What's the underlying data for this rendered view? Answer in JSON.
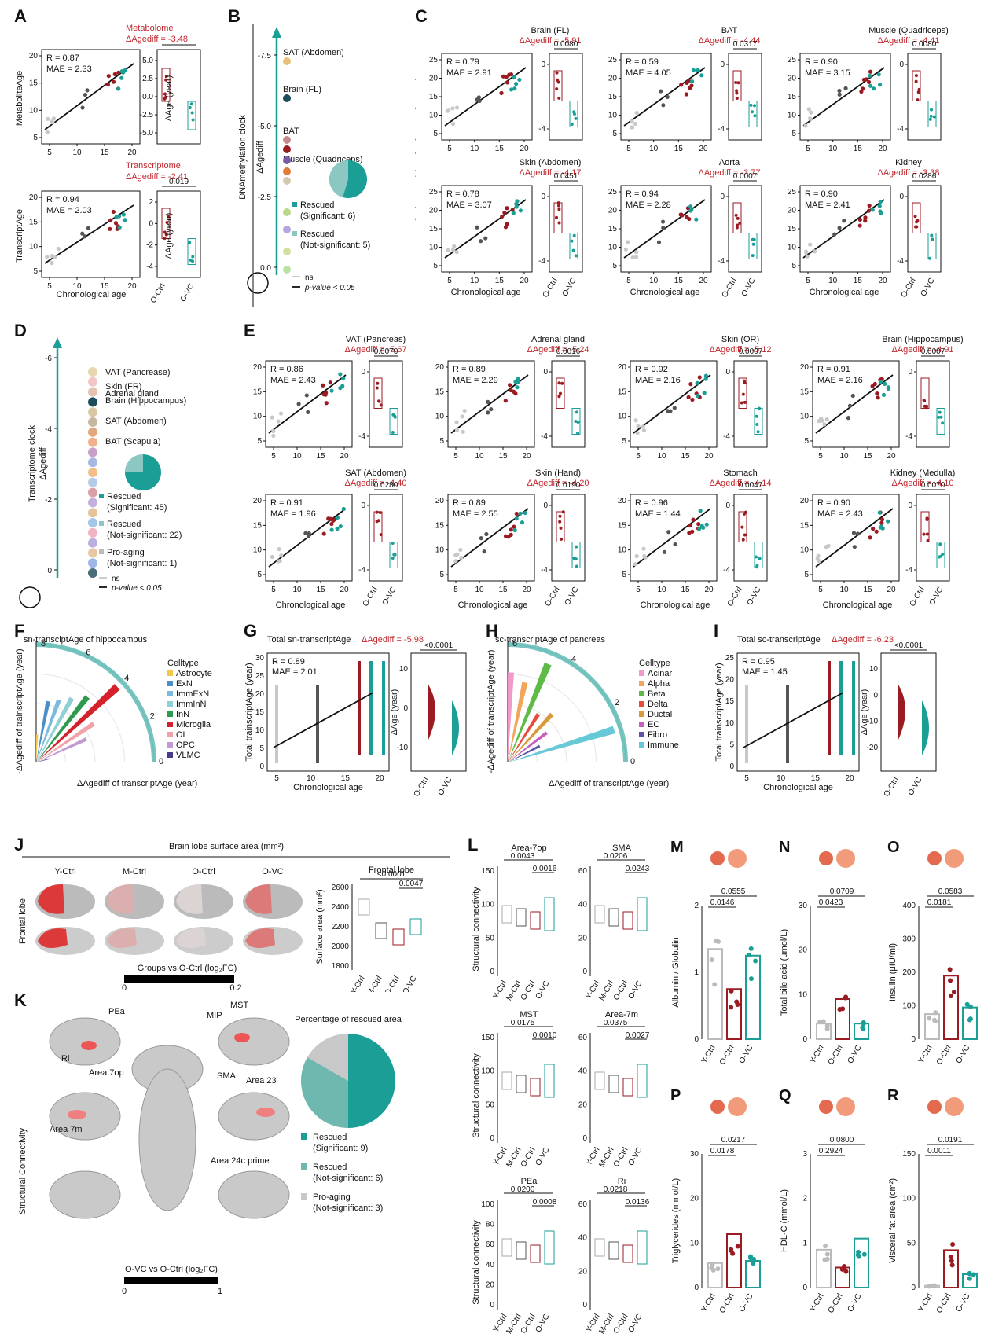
{
  "colors": {
    "red": "#9b1b22",
    "teal": "#1a9e96",
    "grey": "#c8c8c8",
    "dark": "#555555",
    "line": "#111111"
  },
  "letters": [
    "A",
    "B",
    "C",
    "D",
    "E",
    "F",
    "G",
    "H",
    "I",
    "J",
    "K",
    "L",
    "M",
    "N",
    "O",
    "P",
    "Q",
    "R"
  ],
  "panelA": {
    "top": {
      "title": "Metabolome",
      "delta": "ΔAgediff = -3.48",
      "ylabel": "MetaboliteAge",
      "R": "R = 0.87",
      "MAE": "MAE = 2.33",
      "pval": "0.0080",
      "box_ylabel": "ΔAge (year)",
      "yticks": [
        "20",
        "15",
        "10",
        "5"
      ],
      "xticks": [
        "5",
        "10",
        "15",
        "20"
      ],
      "box_yticks": [
        "5.0",
        "2.5",
        "0.0",
        "-2.5",
        "-5.0"
      ]
    },
    "bottom": {
      "title": "Transcriptome",
      "delta": "ΔAgediff = -2.41",
      "ylabel": "TranscriptAge",
      "R": "R = 0.94",
      "MAE": "MAE = 2.03",
      "pval": "0.019",
      "box_ylabel": "ΔAge (year)",
      "yticks": [
        "20",
        "15",
        "10",
        "5"
      ],
      "xticks": [
        "5",
        "10",
        "15",
        "20"
      ],
      "box_yticks": [
        "2",
        "0",
        "-2",
        "-4"
      ]
    },
    "xlabel": "Chronological age",
    "groups": [
      "O-Ctrl",
      "O-VC"
    ]
  },
  "panelB": {
    "ylabel": "DNAmethylation clock",
    "axis": "ΔAgediff",
    "ticks": [
      "-7.5",
      "-5.0",
      "-2.5",
      "0.0"
    ],
    "labels": [
      "SAT (Abdomen)",
      "Brain (FL)",
      "BAT",
      "Muscle (Quadriceps)"
    ],
    "legend": [
      "Rescued",
      "(Significant: 6)",
      "Rescued",
      "(Not-significant: 5)"
    ],
    "line_legend": [
      "ns",
      "p-value < 0.05"
    ],
    "pie": {
      "significant": 6,
      "not_significant": 5
    }
  },
  "panelC": {
    "ylabel": "DNAmAge (left side) | ΔAge (year) (right side)",
    "xlabel": "Chronological age",
    "groups": [
      "O-Ctrl",
      "O-VC"
    ],
    "charts": [
      {
        "title": "Brain (FL)",
        "delta": "ΔAgediff = -5.91",
        "R": "R = 0.79",
        "MAE": "MAE = 2.91",
        "p": "0.0080"
      },
      {
        "title": "BAT",
        "delta": "ΔAgediff = -4.44",
        "R": "R = 0.59",
        "MAE": "MAE = 4.05",
        "p": "0.0317"
      },
      {
        "title": "Muscle (Quadriceps)",
        "delta": "ΔAgediff = -4.41",
        "R": "R = 0.90",
        "MAE": "MAE = 3.15",
        "p": "0.0080"
      },
      {
        "title": "Skin (Abdomen)",
        "delta": "ΔAgediff = -4.17",
        "R": "R = 0.78",
        "MAE": "MAE = 3.07",
        "p": "0.0451"
      },
      {
        "title": "Aorta",
        "delta": "ΔAgediff = -3.77",
        "R": "R = 0.94",
        "MAE": "MAE = 2.28",
        "p": "0.0007"
      },
      {
        "title": "Kidney",
        "delta": "ΔAgediff = -3.38",
        "R": "R = 0.90",
        "MAE": "MAE = 2.41",
        "p": "0.0286"
      }
    ]
  },
  "panelD": {
    "ylabel": "Transcriptome clock",
    "axis": "ΔAgediff",
    "ticks": [
      "-6",
      "-4",
      "-2",
      "0"
    ],
    "labels": [
      "VAT (Pancrease)",
      "Skin (FR)",
      "Adrenal gland",
      "Brain (Hippocampus)",
      "SAT (Abdomen)",
      "BAT (Scapula)"
    ],
    "legend": [
      "Rescued",
      "(Significant: 45)",
      "Rescued",
      "(Not-significant: 22)",
      "Pro-aging",
      "(Not-significant: 1)"
    ],
    "line_legend": [
      "ns",
      "p-value < 0.05"
    ],
    "pie": {
      "significant": 45,
      "not_significant": 22,
      "pro_aging": 1
    }
  },
  "panelE": {
    "ylabel": "TranscriptAge (left side) | ΔAge (year) (right side)",
    "xlabel": "Chronological age",
    "groups": [
      "O-Ctrl",
      "O-VC"
    ],
    "charts": [
      {
        "title": "VAT (Pancreas)",
        "delta": "ΔAgediff = -5.67",
        "R": "R = 0.86",
        "MAE": "MAE = 2.43",
        "p": "0.0070"
      },
      {
        "title": "Adrenal gland",
        "delta": "ΔAgediff = -5.24",
        "R": "R = 0.89",
        "MAE": "MAE = 2.29",
        "p": "0.0016"
      },
      {
        "title": "Skin (OR)",
        "delta": "ΔAgediff = -5.12",
        "R": "R = 0.92",
        "MAE": "MAE = 2.16",
        "p": "0.0007"
      },
      {
        "title": "Brain (Hippocampus)",
        "delta": "ΔAgediff = -4.91",
        "R": "R = 0.91",
        "MAE": "MAE = 2.16",
        "p": "0.0007"
      },
      {
        "title": "SAT (Abdomen)",
        "delta": "ΔAgediff = -4.40",
        "R": "R = 0.91",
        "MAE": "MAE = 1.96",
        "p": "0.0280"
      },
      {
        "title": "Skin (Hand)",
        "delta": "ΔAgediff = -4.20",
        "R": "R = 0.89",
        "MAE": "MAE = 2.55",
        "p": "0.0190"
      },
      {
        "title": "Stomach",
        "delta": "ΔAgediff = -4.14",
        "R": "R = 0.96",
        "MAE": "MAE = 1.44",
        "p": "0.0047"
      },
      {
        "title": "Kidney (Medulla)",
        "delta": "ΔAgediff = -4.10",
        "R": "R = 0.90",
        "MAE": "MAE = 2.43",
        "p": "0.0070"
      }
    ]
  },
  "panelF": {
    "title": "sn-transciptAge of hippocampus",
    "ylabel": "-ΔAgediff of trainscriptAge (year)",
    "xlabel": "ΔAgediff of transcriptAge (year)",
    "arc_ticks": [
      "8",
      "6",
      "4",
      "2",
      "0"
    ],
    "legend_title": "Celltype",
    "celltypes": [
      {
        "name": "Astrocyte",
        "color": "#f2c84b",
        "value": 2.0
      },
      {
        "name": "ExN",
        "color": "#4a8fc9",
        "value": 4.5
      },
      {
        "name": "ImmExN",
        "color": "#7bbbe0",
        "value": 4.8
      },
      {
        "name": "ImmInN",
        "color": "#8fd0d6",
        "value": 5.3
      },
      {
        "name": "InN",
        "color": "#2e9a4f",
        "value": 6.0
      },
      {
        "name": "Microglia",
        "color": "#d4212b",
        "value": 8.0
      },
      {
        "name": "OL",
        "color": "#f1a1a7",
        "value": 5.0
      },
      {
        "name": "OPC",
        "color": "#c39bd3",
        "value": 4.0
      },
      {
        "name": "VLMC",
        "color": "#4b3a8c",
        "value": 1.0
      }
    ]
  },
  "panelG": {
    "title": "Total sn-transcriptAge",
    "delta": "ΔAgediff = -5.98",
    "ylabel": "Total trainscriptAge (year)",
    "xlabel": "Chronological age",
    "R": "R = 0.89",
    "MAE": "MAE = 2.01",
    "p": "<0.0001",
    "box_ylabel": "ΔAge (year)",
    "groups": [
      "O-Ctrl",
      "O-VC"
    ],
    "yticks": [
      "30",
      "25",
      "20",
      "15",
      "10",
      "5",
      "0"
    ],
    "xticks": [
      "5",
      "10",
      "15",
      "20"
    ],
    "box_yticks": [
      "10",
      "0",
      "-10"
    ]
  },
  "panelH": {
    "title": "sc-transcriptAge of pancreas",
    "ylabel": "-ΔAgediff of transcriptAge (year)",
    "xlabel": "ΔAgediff of transcriptAge (year)",
    "arc_ticks": [
      "6",
      "4",
      "2",
      "0"
    ],
    "legend_title": "Celltype",
    "celltypes": [
      {
        "name": "Acinar",
        "color": "#f29ac7",
        "value": 5.5
      },
      {
        "name": "Alpha",
        "color": "#f2a65a",
        "value": 5.0
      },
      {
        "name": "Beta",
        "color": "#5dbb46",
        "value": 6.5
      },
      {
        "name": "Delta",
        "color": "#e74c3c",
        "value": 3.5
      },
      {
        "name": "Ductal",
        "color": "#d79a3a",
        "value": 4.0
      },
      {
        "name": "EC",
        "color": "#c75fbd",
        "value": 3.0
      },
      {
        "name": "Fibro",
        "color": "#5b53a6",
        "value": 2.2
      },
      {
        "name": "Immune",
        "color": "#67c8d8",
        "value": 6.8
      }
    ]
  },
  "panelI": {
    "title": "Total sc-transcriptAge",
    "delta": "ΔAgediff = -6.23",
    "ylabel": "Total trainscriptAge (year)",
    "xlabel": "Chronological age",
    "R": "R = 0.95",
    "MAE": "MAE = 1.45",
    "p": "<0.0001",
    "box_ylabel": "ΔAge (year)",
    "groups": [
      "O-Ctrl",
      "O-VC"
    ],
    "yticks": [
      "25",
      "20",
      "15",
      "10",
      "5",
      "0"
    ],
    "xticks": [
      "5",
      "10",
      "15",
      "20"
    ],
    "box_yticks": [
      "10",
      "0",
      "-10",
      "-20"
    ]
  },
  "panelJ": {
    "title": "Brain lobe surface area (mm²)",
    "cols": [
      "Y-Ctrl",
      "M-Ctrl",
      "O-Ctrl",
      "O-VC"
    ],
    "rowlabel": "Frontal lobe",
    "scale_label": "Groups vs O-Ctrl (log₂FC)",
    "scale_min": "0",
    "scale_max": "0.2",
    "box_title": "Frontal lobe",
    "box_ylabel": "Surface area (mm²)",
    "p1": "<0.0001",
    "p2": "0.0047",
    "box_yticks": [
      "2600",
      "2400",
      "2200",
      "2000",
      "1800"
    ]
  },
  "panelK": {
    "ylabel": "Structural Connectivity",
    "areas": [
      "PEa",
      "MIP",
      "MST",
      "Ri",
      "Area 7op",
      "SMA",
      "Area 23",
      "Area 7m",
      "Area 24c prime"
    ],
    "pie_title": "Percentage of rescued area",
    "legend": [
      "Rescued",
      "(Significant: 9)",
      "Rescued",
      "(Not-significant: 6)",
      "Pro-aging",
      "(Not-significant: 3)"
    ],
    "pie": {
      "significant": 9,
      "not_significant": 6,
      "pro_aging": 3
    },
    "scale_label": "O-VC vs O-Ctrl (log₂FC)",
    "scale_min": "0",
    "scale_max": "1"
  },
  "panelL": {
    "ylabel": "Structural connectivity",
    "groups": [
      "Y-Ctrl",
      "M-Ctrl",
      "O-Ctrl",
      "O-VC"
    ],
    "charts": [
      {
        "title": "Area-7op",
        "p1": "0.0043",
        "p2": "0.0016",
        "yticks": [
          "150",
          "100",
          "50",
          "0"
        ]
      },
      {
        "title": "SMA",
        "p1": "0.0206",
        "p2": "0.0243",
        "yticks": [
          "60",
          "40",
          "20",
          "0"
        ]
      },
      {
        "title": "MST",
        "p1": "0.0175",
        "p2": "0.0010",
        "yticks": [
          "150",
          "100",
          "50",
          "0"
        ]
      },
      {
        "title": "Area-7m",
        "p1": "0.0375",
        "p2": "0.0027",
        "yticks": [
          "60",
          "40",
          "20",
          "0"
        ]
      },
      {
        "title": "PEa",
        "p1": "0.0200",
        "p2": "0.0008",
        "yticks": [
          "100",
          "80",
          "60",
          "40",
          "20",
          "0"
        ]
      },
      {
        "title": "Ri",
        "p1": "0.0218",
        "p2": "0.0136",
        "yticks": [
          "60",
          "40",
          "20",
          "0"
        ]
      }
    ]
  },
  "bars": {
    "groups": [
      "Y-Ctrl",
      "O-Ctrl",
      "O-VC"
    ],
    "charts": [
      {
        "letter": "M",
        "ylabel": "Albumin / Globulin",
        "p1": "0.0146",
        "p2": "0.0555",
        "values": [
          1.35,
          0.75,
          1.25
        ],
        "ymax": 2,
        "yticks": [
          "2",
          "1",
          "0"
        ]
      },
      {
        "letter": "N",
        "ylabel": "Total bile acid (μmol/L)",
        "p1": "0.0423",
        "p2": "0.0709",
        "values": [
          3.5,
          9,
          3.5
        ],
        "ymax": 30,
        "yticks": [
          "30",
          "20",
          "10",
          "0"
        ]
      },
      {
        "letter": "O",
        "ylabel": "Insulin (μIU/ml)",
        "p1": "0.0181",
        "p2": "0.0583",
        "values": [
          75,
          190,
          95
        ],
        "ymax": 400,
        "yticks": [
          "400",
          "300",
          "200",
          "100",
          "0"
        ]
      },
      {
        "letter": "P",
        "ylabel": "Triglycerides (mmol/L)",
        "p1": "0.0178",
        "p2": "0.0217",
        "values": [
          5.5,
          12,
          6
        ],
        "ymax": 30,
        "yticks": [
          "30",
          "20",
          "10",
          "0"
        ]
      },
      {
        "letter": "Q",
        "ylabel": "HDL-C (mmol/L)",
        "p1": "0.2924",
        "p2": "0.0800",
        "values": [
          0.85,
          0.45,
          1.1
        ],
        "ymax": 3,
        "yticks": [
          "3",
          "2",
          "1",
          "0"
        ]
      },
      {
        "letter": "R",
        "ylabel": "Visceral fat area (cm²)",
        "p1": "0.0011",
        "p2": "0.0191",
        "values": [
          2,
          42,
          15
        ],
        "ymax": 150,
        "yticks": [
          "150",
          "100",
          "50",
          "0"
        ]
      }
    ]
  }
}
